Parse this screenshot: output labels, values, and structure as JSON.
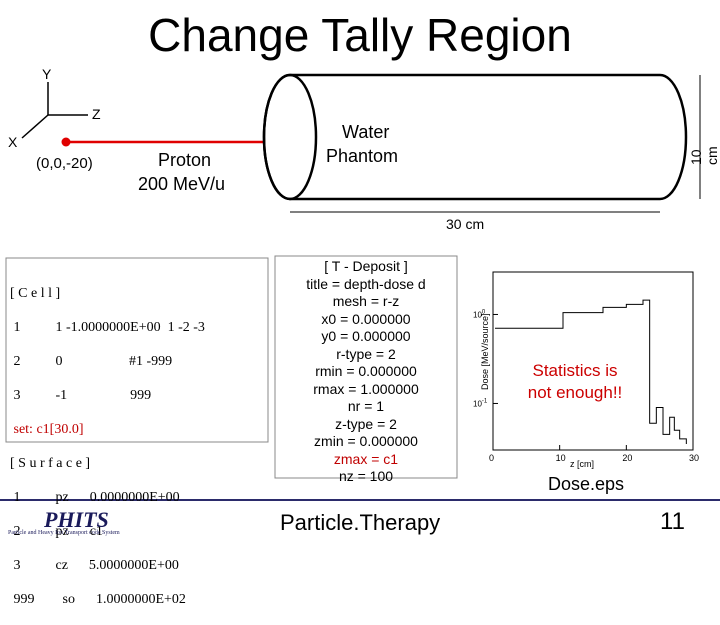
{
  "slide": {
    "title": "Change Tally Region",
    "footer_center": "Particle.Therapy",
    "page_number": "11",
    "logo_text": "PHITS",
    "logo_subtitle": "Particle and Heavy Ion Transport code System"
  },
  "geometry": {
    "axis_y": "Y",
    "axis_z": "Z",
    "axis_x": "X",
    "origin_label": "(0,0,-20)",
    "beam_label_1": "Proton",
    "beam_label_2": "200 MeV/u",
    "phantom_label_1": "Water",
    "phantom_label_2": "Phantom",
    "diameter_label": "10 cm",
    "length_label": "30 cm"
  },
  "cell_section": {
    "lines": [
      "[ C e l l ]",
      " 1          1 -1.0000000E+00  1 -2 -3",
      " 2          0                   #1 -999",
      " 3          -1                  999",
      " set: c1[30.0]",
      "[ S u r f a c e ]",
      " 1          pz      0.0000000E+00",
      " 2          pz      c1",
      " 3          cz      5.0000000E+00",
      " 999        so      1.0000000E+02"
    ]
  },
  "tally_section": {
    "lines": [
      "[ T - Deposit ]",
      "title = depth-dose d",
      "mesh =  r-z",
      "x0 =   0.000000",
      "y0 =   0.000000",
      "r-type =    2",
      "rmin =   0.000000",
      "rmax =    1.000000",
      "nr =    1",
      "z-type =    2",
      "zmin =   0.000000",
      "zmax =   c1",
      "nz =  100"
    ]
  },
  "plot": {
    "ylabel": "Dose [MeV/source]",
    "xlabel": "z [cm]",
    "caption": "Dose.eps",
    "annotation": "Statistics is not enough!!",
    "annotation_line1": "Statistics is",
    "annotation_line2": "not enough!!"
  },
  "chart_data": {
    "type": "line",
    "title": "",
    "xlabel": "z [cm]",
    "ylabel": "Dose [MeV/source]",
    "xlim": [
      0,
      30
    ],
    "ylim_log": [
      0.03,
      3
    ],
    "log_y": true,
    "x_ticks": [
      "0",
      "10",
      "20",
      "30"
    ],
    "y_ticks": [
      "10^0",
      "10^-1"
    ],
    "series": [
      {
        "x": [
          0.3,
          10.5,
          16.5,
          20.0,
          22.5,
          23.5,
          24.5,
          25.5,
          26.5,
          27.2,
          28.0,
          29.0
        ],
        "y": [
          0.7,
          1.05,
          1.2,
          1.3,
          1.45,
          0.06,
          0.09,
          0.045,
          0.07,
          0.05,
          0.04,
          0.035
        ]
      }
    ]
  }
}
